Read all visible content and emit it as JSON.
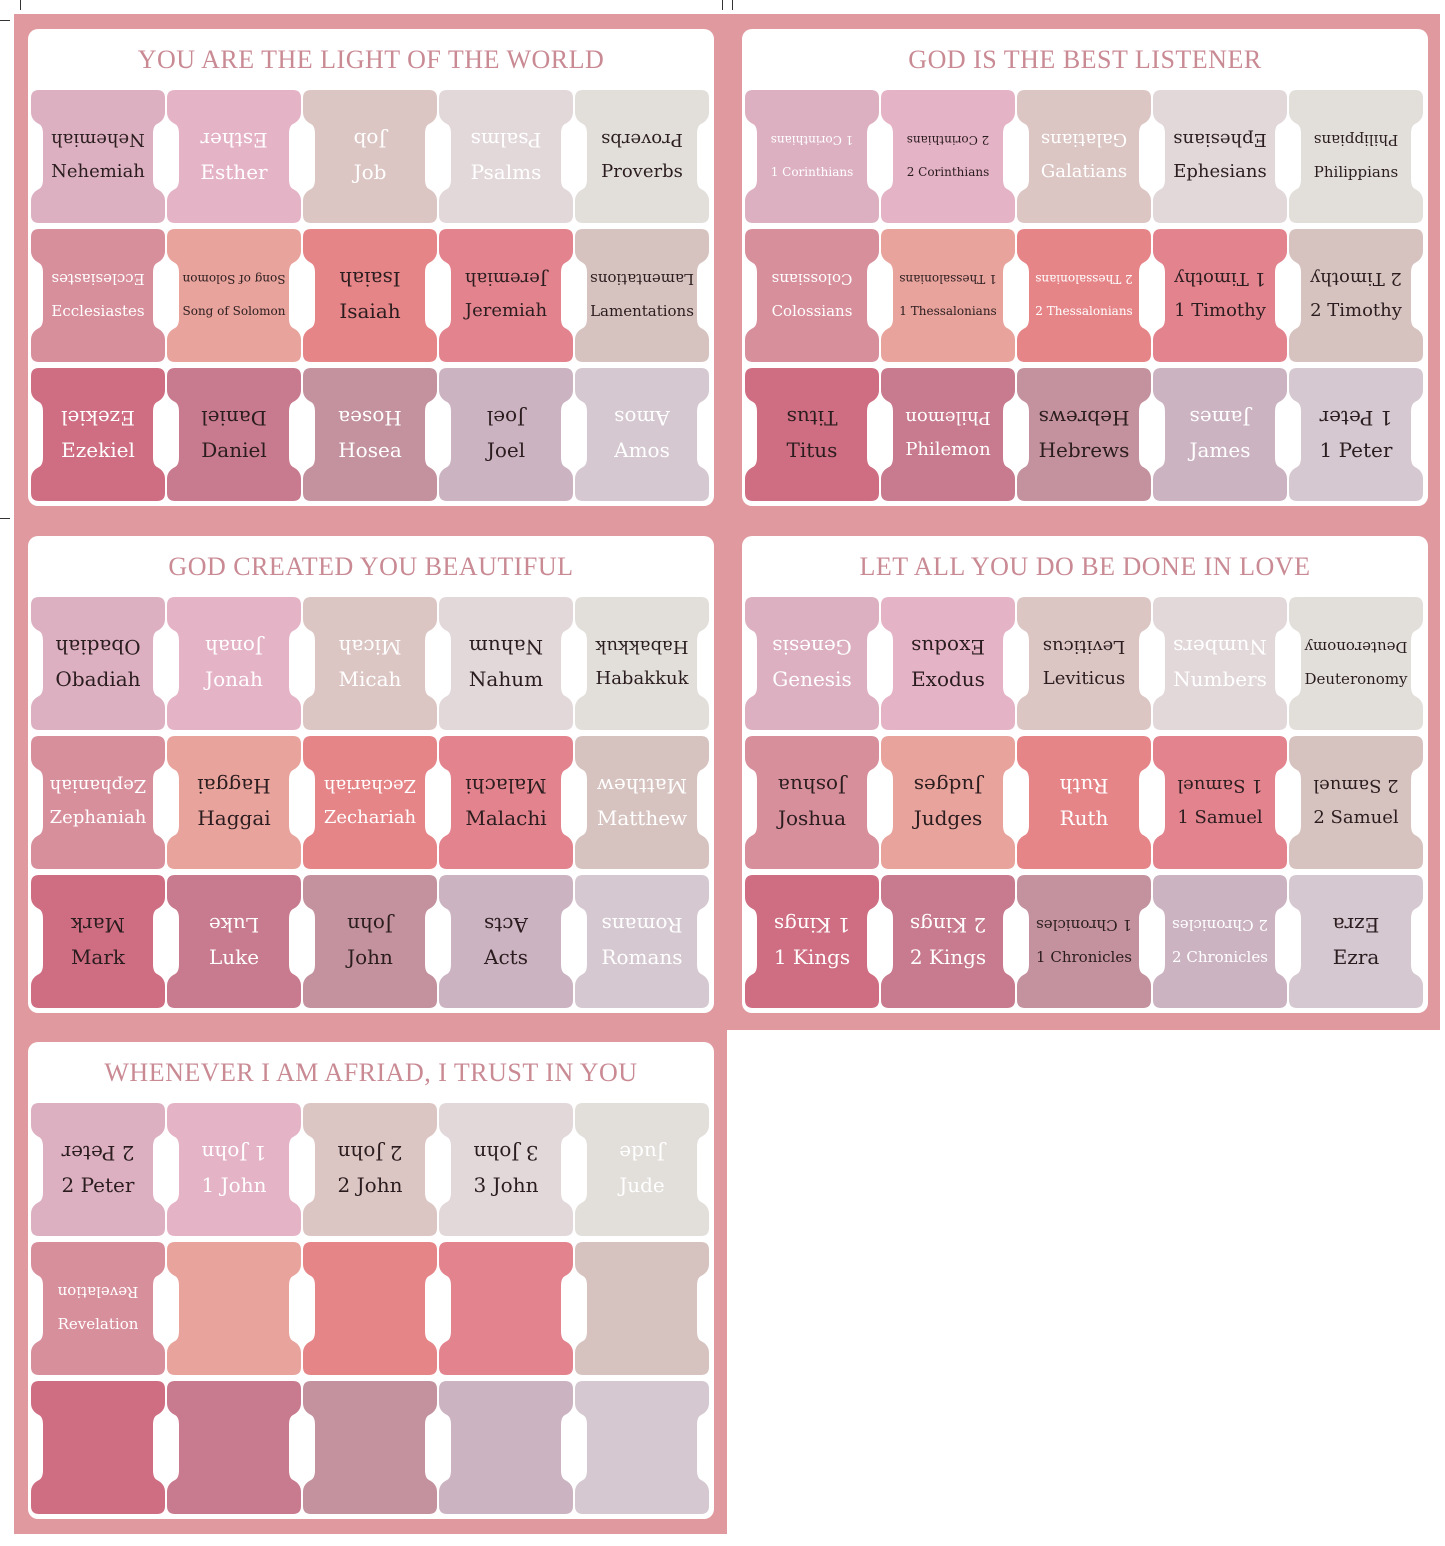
{
  "colors": {
    "background": "#e0999e",
    "title": "#c98a94",
    "dark_text": "#2b1d1f",
    "light_text": "#ffffff",
    "rows": [
      [
        "#dcb0c0",
        "#e5b3c6",
        "#dcc6c4",
        "#e2d8da",
        "#e2dfdb"
      ],
      [
        "#d88f9c",
        "#e8a39c",
        "#e68588",
        "#e2838e",
        "#d6c3bf"
      ],
      [
        "#cf6e82",
        "#c87a8e",
        "#c3929e",
        "#ccb3c1",
        "#d5c8d0"
      ]
    ]
  },
  "panels": [
    {
      "title": "YOU ARE THE LIGHT OF THE WORLD",
      "tabs": [
        {
          "label": "Nehemiah",
          "light": false
        },
        {
          "label": "Esther",
          "light": true
        },
        {
          "label": "Job",
          "light": true
        },
        {
          "label": "Psalms",
          "light": true
        },
        {
          "label": "Proverbs",
          "light": false
        },
        {
          "label": "Ecclesiastes",
          "light": true
        },
        {
          "label": "Song of Solomon",
          "light": false
        },
        {
          "label": "Isaiah",
          "light": false
        },
        {
          "label": "Jeremiah",
          "light": false
        },
        {
          "label": "Lamentations",
          "light": false
        },
        {
          "label": "Ezekiel",
          "light": true
        },
        {
          "label": "Daniel",
          "light": false
        },
        {
          "label": "Hosea",
          "light": true
        },
        {
          "label": "Joel",
          "light": false
        },
        {
          "label": "Amos",
          "light": true
        }
      ]
    },
    {
      "title": "GOD IS THE BEST LISTENER",
      "tabs": [
        {
          "label": "1 Corinthians",
          "light": true
        },
        {
          "label": "2 Corinthians",
          "light": false
        },
        {
          "label": "Galatians",
          "light": true
        },
        {
          "label": "Ephesians",
          "light": false
        },
        {
          "label": "Philippians",
          "light": false
        },
        {
          "label": "Colossians",
          "light": true
        },
        {
          "label": "1 Thessalonians",
          "light": false
        },
        {
          "label": "2 Thessalonians",
          "light": true
        },
        {
          "label": "1 Timothy",
          "light": false
        },
        {
          "label": "2 Timothy",
          "light": false
        },
        {
          "label": "Titus",
          "light": false
        },
        {
          "label": "Philemon",
          "light": true
        },
        {
          "label": "Hebrews",
          "light": false
        },
        {
          "label": "James",
          "light": true
        },
        {
          "label": "1 Peter",
          "light": false
        }
      ]
    },
    {
      "title": "GOD CREATED YOU BEAUTIFUL",
      "tabs": [
        {
          "label": "Obadiah",
          "light": false
        },
        {
          "label": "Jonah",
          "light": true
        },
        {
          "label": "Micah",
          "light": true
        },
        {
          "label": "Nahum",
          "light": false
        },
        {
          "label": "Habakkuk",
          "light": false
        },
        {
          "label": "Zephaniah",
          "light": true
        },
        {
          "label": "Haggai",
          "light": false
        },
        {
          "label": "Zechariah",
          "light": true
        },
        {
          "label": "Malachi",
          "light": false
        },
        {
          "label": "Matthew",
          "light": true
        },
        {
          "label": "Mark",
          "light": false
        },
        {
          "label": "Luke",
          "light": true
        },
        {
          "label": "John",
          "light": false
        },
        {
          "label": "Acts",
          "light": false
        },
        {
          "label": "Romans",
          "light": true
        }
      ]
    },
    {
      "title": "LET ALL YOU DO BE DONE IN LOVE",
      "tabs": [
        {
          "label": "Genesis",
          "light": true
        },
        {
          "label": "Exodus",
          "light": false
        },
        {
          "label": "Leviticus",
          "light": false
        },
        {
          "label": "Numbers",
          "light": true
        },
        {
          "label": "Deuteronomy",
          "light": false
        },
        {
          "label": "Joshua",
          "light": false
        },
        {
          "label": "Judges",
          "light": false
        },
        {
          "label": "Ruth",
          "light": true
        },
        {
          "label": "1 Samuel",
          "light": false
        },
        {
          "label": "2 Samuel",
          "light": false
        },
        {
          "label": "1 Kings",
          "light": true
        },
        {
          "label": "2 Kings",
          "light": true
        },
        {
          "label": "1 Chronicles",
          "light": false
        },
        {
          "label": "2 Chronicles",
          "light": true
        },
        {
          "label": "Ezra",
          "light": false
        }
      ]
    },
    {
      "title": "WHENEVER I AM AFRIAD, I TRUST IN YOU",
      "tabs": [
        {
          "label": "2 Peter",
          "light": false
        },
        {
          "label": "1 John",
          "light": true
        },
        {
          "label": "2 John",
          "light": false
        },
        {
          "label": "3 John",
          "light": false
        },
        {
          "label": "Jude",
          "light": true
        },
        {
          "label": "Revelation",
          "light": true
        },
        {
          "label": "",
          "light": true
        },
        {
          "label": "",
          "light": true
        },
        {
          "label": "",
          "light": true
        },
        {
          "label": "",
          "light": true
        },
        {
          "label": "",
          "light": true
        },
        {
          "label": "",
          "light": true
        },
        {
          "label": "",
          "light": true
        },
        {
          "label": "",
          "light": true
        },
        {
          "label": "",
          "light": true
        }
      ]
    }
  ]
}
